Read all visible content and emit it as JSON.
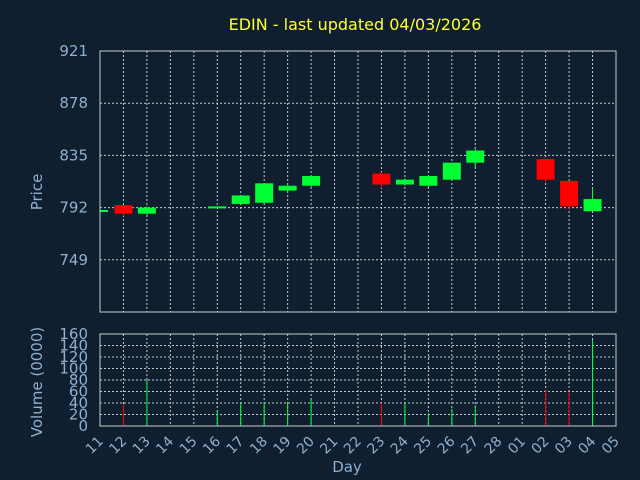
{
  "colors": {
    "background": "#0f1f30",
    "up": "#00ff33",
    "down": "#ff0000",
    "text": "#8fb0cf",
    "title": "#ffff33",
    "grid": "#c8c8c8"
  },
  "chart_data": {
    "type": "candlestick",
    "title": "EDIN - last updated 04/03/2026",
    "xlabel": "Day",
    "ylabel": "Price",
    "volume_label": "Volume (0000)",
    "x_ticks": [
      "11",
      "12",
      "13",
      "14",
      "15",
      "16",
      "17",
      "18",
      "19",
      "20",
      "21",
      "22",
      "23",
      "24",
      "25",
      "26",
      "27",
      "28",
      "01",
      "02",
      "03",
      "04",
      "05"
    ],
    "price_ticks": [
      "921",
      "878",
      "835",
      "792",
      "749"
    ],
    "price_range": [
      706,
      921
    ],
    "volume_ticks": [
      "160",
      "140",
      "120",
      "100",
      "80",
      "60",
      "40",
      "20",
      "0"
    ],
    "volume_range": [
      0,
      160
    ],
    "grid": true,
    "candles": [
      {
        "day": "11",
        "open": 790,
        "high": 791,
        "low": 789,
        "close": 790,
        "volume": 0
      },
      {
        "day": "12",
        "open": 794,
        "high": 794,
        "low": 785,
        "close": 787,
        "volume": 38
      },
      {
        "day": "13",
        "open": 787,
        "high": 793,
        "low": 786,
        "close": 792,
        "volume": 80
      },
      {
        "day": "16",
        "open": 792,
        "high": 793,
        "low": 791,
        "close": 793,
        "volume": 28
      },
      {
        "day": "17",
        "open": 795,
        "high": 802,
        "low": 794,
        "close": 802,
        "volume": 40
      },
      {
        "day": "18",
        "open": 796,
        "high": 812,
        "low": 795,
        "close": 812,
        "volume": 42
      },
      {
        "day": "19",
        "open": 806,
        "high": 812,
        "low": 804,
        "close": 810,
        "volume": 42
      },
      {
        "day": "20",
        "open": 810,
        "high": 818,
        "low": 809,
        "close": 818,
        "volume": 46
      },
      {
        "day": "23",
        "open": 820,
        "high": 821,
        "low": 808,
        "close": 811,
        "volume": 40
      },
      {
        "day": "24",
        "open": 811,
        "high": 816,
        "low": 810,
        "close": 815,
        "volume": 40
      },
      {
        "day": "25",
        "open": 810,
        "high": 818,
        "low": 809,
        "close": 818,
        "volume": 22
      },
      {
        "day": "26",
        "open": 815,
        "high": 829,
        "low": 814,
        "close": 829,
        "volume": 30
      },
      {
        "day": "27",
        "open": 829,
        "high": 840,
        "low": 825,
        "close": 839,
        "volume": 36
      },
      {
        "day": "02",
        "open": 832,
        "high": 832,
        "low": 813,
        "close": 815,
        "volume": 62
      },
      {
        "day": "03",
        "open": 814,
        "high": 814,
        "low": 790,
        "close": 793,
        "volume": 60
      },
      {
        "day": "04",
        "open": 789,
        "high": 808,
        "low": 789,
        "close": 799,
        "volume": 150
      }
    ]
  }
}
